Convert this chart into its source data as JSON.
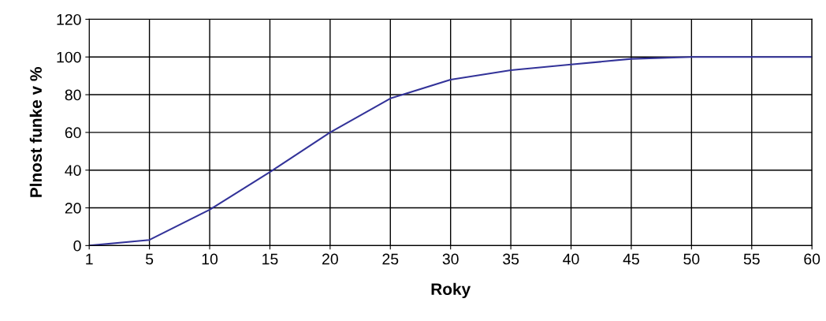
{
  "chart_data": {
    "type": "line",
    "xlabel": "Roky",
    "ylabel": "Plnost funke v %",
    "categories": [
      "1",
      "5",
      "10",
      "15",
      "20",
      "25",
      "30",
      "35",
      "40",
      "45",
      "50",
      "55",
      "60"
    ],
    "series": [
      {
        "color": "#333399",
        "values": [
          0,
          3,
          19,
          39,
          60,
          78,
          88,
          93,
          96,
          99,
          100,
          100,
          100
        ]
      }
    ],
    "ylim": [
      0,
      120
    ],
    "yticks": [
      0,
      20,
      40,
      60,
      80,
      100,
      120
    ],
    "grid": true,
    "marker": "none",
    "line_style": "solid"
  }
}
